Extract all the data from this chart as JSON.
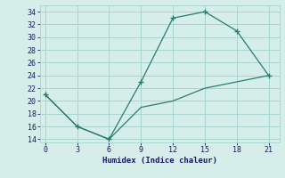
{
  "line1_x": [
    0,
    3,
    6,
    9,
    12,
    15,
    18,
    21
  ],
  "line1_y": [
    21,
    16,
    14,
    23,
    33,
    34,
    31,
    24
  ],
  "line2_x": [
    0,
    3,
    6,
    9,
    12,
    15,
    18,
    21
  ],
  "line2_y": [
    21,
    16,
    14,
    19,
    20,
    22,
    23,
    24
  ],
  "color": "#2a7b6f",
  "xlabel": "Humidex (Indice chaleur)",
  "xlim": [
    -0.5,
    22
  ],
  "ylim": [
    13.5,
    35
  ],
  "xticks": [
    0,
    3,
    6,
    9,
    12,
    15,
    18,
    21
  ],
  "yticks": [
    14,
    16,
    18,
    20,
    22,
    24,
    26,
    28,
    30,
    32,
    34
  ],
  "bg_color": "#d6eeea",
  "grid_color": "#a8d5ce",
  "font_color": "#1a1a5e"
}
